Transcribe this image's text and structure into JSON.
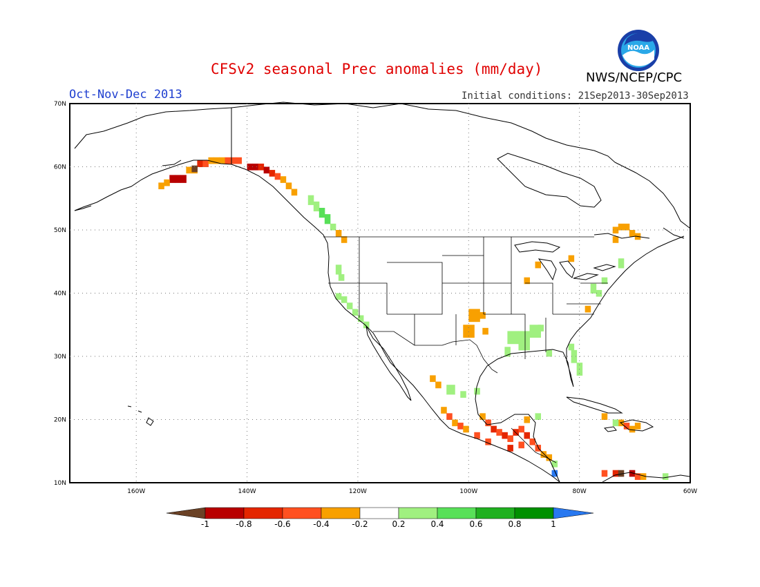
{
  "header": {
    "title": "CFSv2 seasonal Prec anomalies (mm/day)",
    "season": "Oct-Nov-Dec 2013",
    "initial_conditions": "Initial conditions: 21Sep2013-30Sep2013",
    "agency": "NWS/NCEP/CPC",
    "logo_text": "NOAA"
  },
  "map": {
    "lon_range": [
      -172,
      -60
    ],
    "lat_range": [
      10,
      70
    ],
    "lat_ticks": [
      "10N",
      "20N",
      "30N",
      "40N",
      "50N",
      "60N",
      "70N"
    ],
    "lon_ticks": [
      "160W",
      "140W",
      "120W",
      "100W",
      "80W",
      "60W"
    ],
    "grid": true,
    "variable": "precipitation anomaly",
    "units": "mm/day"
  },
  "colorbar": {
    "ticks": [
      "-1",
      "-0.8",
      "-0.6",
      "-0.4",
      "-0.2",
      "0.2",
      "0.4",
      "0.6",
      "0.8",
      "1"
    ],
    "colors": [
      "#6b4226",
      "#b80000",
      "#e42600",
      "#ff5020",
      "#f8a000",
      "#ffffff",
      "#a0f080",
      "#58e058",
      "#20b020",
      "#009000",
      "#2878f0"
    ]
  },
  "anomaly_regions": [
    {
      "name": "Southern Alaska coast",
      "category": "-0.6"
    },
    {
      "name": "Alaska panhandle",
      "category": "-0.6"
    },
    {
      "name": "Pacific Northwest coast",
      "category": "0.2"
    },
    {
      "name": "Northern California",
      "category": "0.2"
    },
    {
      "name": "Oklahoma / North Texas",
      "category": "-0.2"
    },
    {
      "name": "Lower Mississippi Valley",
      "category": "0.2"
    },
    {
      "name": "Florida",
      "category": "0.2"
    },
    {
      "name": "Northeast US",
      "category": "0.2"
    },
    {
      "name": "Eastern Canada",
      "category": "-0.2"
    },
    {
      "name": "Southern Mexico / Central America",
      "category": "-0.6"
    },
    {
      "name": "Caribbean (Hispaniola)",
      "category": "-0.4"
    },
    {
      "name": "Northern South America",
      "category": "-0.6"
    },
    {
      "name": "Panama",
      "category": "1"
    }
  ]
}
